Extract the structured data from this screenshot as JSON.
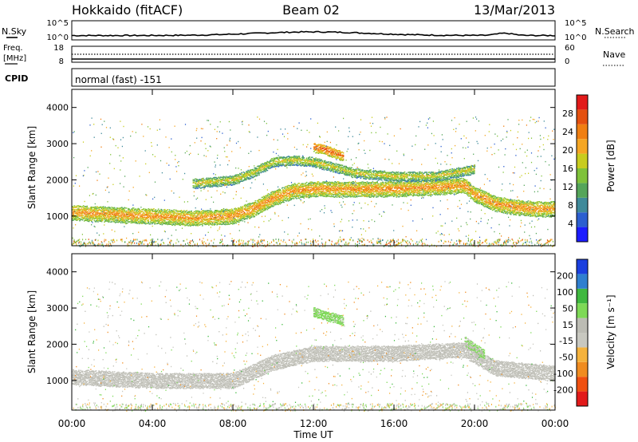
{
  "header": {
    "station": "Hokkaido (fitACF)",
    "beam": "Beam 02",
    "date": "13/Mar/2013"
  },
  "noise_panel": {
    "left_label": "N.Sky",
    "right_label": "N.Search",
    "left_ticks": [
      "10^5",
      "10^0"
    ],
    "right_ticks": [
      "10^5",
      "10^0"
    ]
  },
  "freq_panel": {
    "left_label_1": "Freq.",
    "left_label_2": "[MHz]",
    "right_label": "Nave",
    "left_ticks": [
      "18",
      "8"
    ],
    "right_ticks": [
      "60",
      "0"
    ]
  },
  "cpid": {
    "label": "CPID",
    "value": "normal (fast) -151"
  },
  "chart_data": [
    {
      "type": "heatmap",
      "parameter": "power",
      "ylabel": "Slant Range [km]",
      "yticks": [
        "4000",
        "3000",
        "2000",
        "1000"
      ],
      "ylim": [
        180,
        4500
      ],
      "colorbar_label": "Power [dB]",
      "colorbar_ticks": [
        "28",
        "24",
        "20",
        "16",
        "12",
        "8",
        "4"
      ],
      "colorbar_range": [
        0,
        30
      ],
      "colors": [
        "#1c1cff",
        "#2c5fd0",
        "#3f8a9a",
        "#55a55a",
        "#7fc23a",
        "#c8cc1e",
        "#f5a623",
        "#f07f12",
        "#e4500f",
        "#e21a1a"
      ],
      "echo_bands": [
        {
          "x": [
            0.0,
            2.0,
            4.0,
            6.0,
            8.0,
            9.0,
            10.0,
            11.0,
            12.0,
            14.0,
            16.0,
            18.0,
            19.5,
            20.0,
            21.0,
            22.0,
            23.0,
            24.0
          ],
          "range_km": [
            1100,
            1050,
            1000,
            950,
            1000,
            1200,
            1500,
            1700,
            1750,
            1750,
            1750,
            1800,
            1850,
            1600,
            1350,
            1250,
            1200,
            1200
          ],
          "power_db": 22
        },
        {
          "x": [
            6.0,
            8.0,
            9.0,
            10.0,
            11.0,
            12.0,
            14.0,
            16.0,
            18.0,
            19.0,
            20.0
          ],
          "range_km": [
            1900,
            2000,
            2200,
            2500,
            2550,
            2500,
            2200,
            2100,
            2100,
            2200,
            2300
          ],
          "power_db": 18
        },
        {
          "x": [
            12.0,
            12.5,
            13.0,
            13.5
          ],
          "range_km": [
            2900,
            2850,
            2750,
            2650
          ],
          "power_db": 25
        }
      ]
    },
    {
      "type": "heatmap",
      "parameter": "velocity",
      "ylabel": "Slant Range [km]",
      "yticks": [
        "4000",
        "3000",
        "2000",
        "1000"
      ],
      "ylim": [
        180,
        4500
      ],
      "colorbar_label": "Velocity [m s⁻¹]",
      "colorbar_ticks": [
        "200",
        "100",
        "50",
        "15",
        "-15",
        "-50",
        "-100",
        "-200"
      ],
      "colorbar_range": [
        -250,
        250
      ],
      "colors": [
        "#e21a1a",
        "#f05010",
        "#f08c20",
        "#f5b23c",
        "#c8c8c0",
        "#bcbcb4",
        "#7ed956",
        "#3fb83f",
        "#2f7fcf",
        "#1a3fdf"
      ],
      "echo_bands": [
        {
          "x": [
            0.0,
            4.0,
            8.0,
            10.0,
            12.0,
            16.0,
            19.5,
            21.0,
            24.0
          ],
          "range_km": [
            1100,
            1000,
            1000,
            1500,
            1750,
            1750,
            1850,
            1350,
            1200
          ],
          "velocity_ms": 0
        },
        {
          "x": [
            12.0,
            13.5
          ],
          "range_km": [
            2900,
            2650
          ],
          "velocity_ms": 60
        },
        {
          "x": [
            19.5,
            20.5
          ],
          "range_km": [
            2100,
            1700
          ],
          "velocity_ms": 50
        }
      ]
    }
  ],
  "xaxis": {
    "label": "Time UT",
    "ticks": [
      "00:00",
      "04:00",
      "08:00",
      "12:00",
      "16:00",
      "20:00",
      "00:00"
    ],
    "range_hours": [
      0,
      24
    ]
  }
}
